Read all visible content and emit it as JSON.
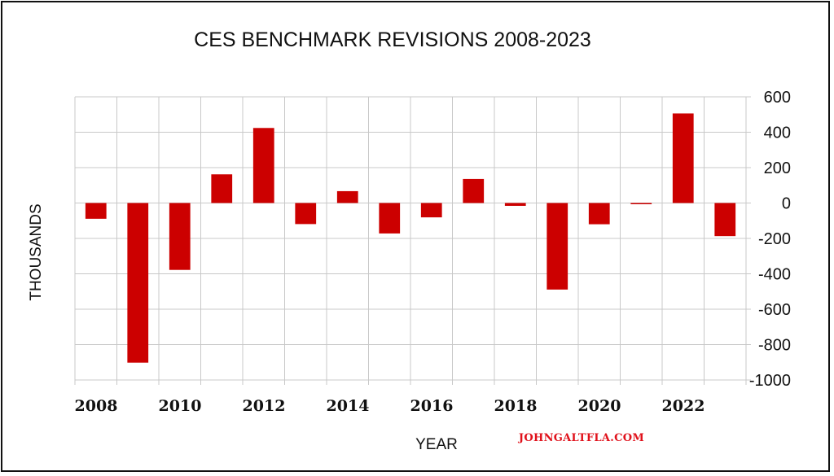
{
  "chart_data": {
    "type": "bar",
    "title": "CES BENCHMARK REVISIONS 2008-2023",
    "xlabel": "YEAR",
    "ylabel": "THOUSANDS",
    "ylim": [
      -1000,
      600
    ],
    "yticks": [
      600,
      400,
      200,
      0,
      -200,
      -400,
      -600,
      -800,
      -1000
    ],
    "x_tick_labels": [
      "2008",
      "2010",
      "2012",
      "2014",
      "2016",
      "2018",
      "2020",
      "2022"
    ],
    "y_axis_side": "right",
    "grid": true,
    "bar_color": "#cc0000",
    "categories": [
      "2008",
      "2009",
      "2010",
      "2011",
      "2012",
      "2013",
      "2014",
      "2015",
      "2016",
      "2017",
      "2018",
      "2019",
      "2020",
      "2021",
      "2022",
      "2023"
    ],
    "values": [
      -89,
      -902,
      -378,
      162,
      424,
      -119,
      67,
      -172,
      -81,
      136,
      -16,
      -489,
      -120,
      -5,
      506,
      -187
    ]
  },
  "watermark": "JOHNGALTFLA.COM"
}
